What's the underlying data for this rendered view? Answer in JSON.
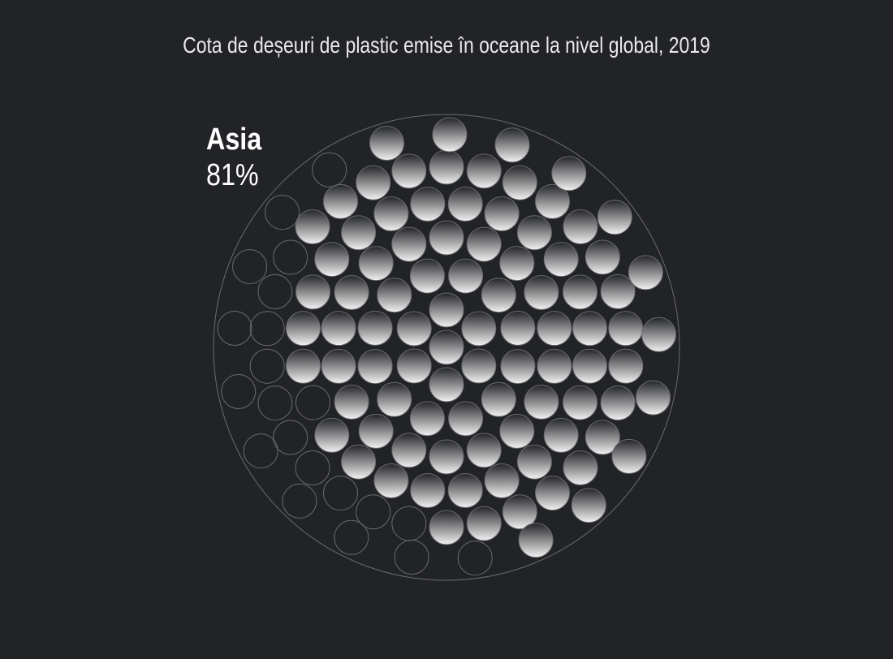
{
  "title": "Cota de deșeuri de plastic emise în oceane la nivel global, 2019",
  "highlight": {
    "name": "Asia",
    "value": "81%"
  },
  "chart_data": {
    "type": "proportional-dot-circle",
    "title": "Cota de deșeuri de plastic emise în oceane la nivel global, 2019",
    "categories": [
      "Asia"
    ],
    "values": [
      81
    ],
    "unit": "%",
    "total_dots": 112,
    "highlighted_dots": 91
  },
  "colors": {
    "background": "#222326",
    "outline": "#6a6b70",
    "fill_top": "#242528",
    "fill_bottom": "#f2f2f2",
    "text": "#ffffff"
  }
}
